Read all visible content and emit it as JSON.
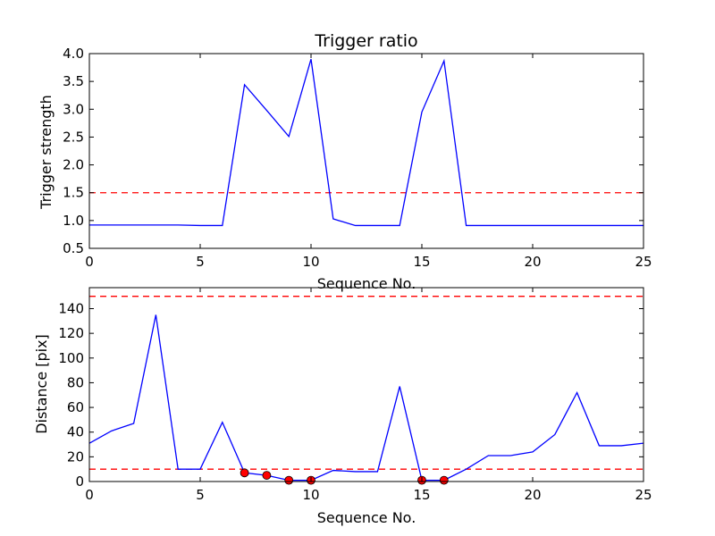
{
  "chart_data": [
    {
      "type": "line",
      "title": "Trigger ratio",
      "xlabel": "Sequence No.",
      "ylabel": "Trigger strength",
      "xlim": [
        0,
        25
      ],
      "ylim": [
        0.5,
        4.0
      ],
      "xticks": [
        0,
        5,
        10,
        15,
        20,
        25
      ],
      "xtick_labels": [
        "0",
        "5",
        "10",
        "15",
        "20",
        "25"
      ],
      "yticks": [
        0.5,
        1.0,
        1.5,
        2.0,
        2.5,
        3.0,
        3.5,
        4.0
      ],
      "ytick_labels": [
        "0.5",
        "1.0",
        "1.5",
        "2.0",
        "2.5",
        "3.0",
        "3.5",
        "4.0"
      ],
      "series": [
        {
          "color": "#0000ff",
          "x": [
            0,
            1,
            2,
            3,
            4,
            5,
            6,
            7,
            8,
            9,
            10,
            11,
            12,
            13,
            14,
            15,
            16,
            17,
            18,
            19,
            20,
            21,
            22,
            23,
            24,
            25
          ],
          "y": [
            0.92,
            0.92,
            0.92,
            0.92,
            0.92,
            0.91,
            0.91,
            3.44,
            2.98,
            2.51,
            3.9,
            1.03,
            0.91,
            0.91,
            0.91,
            2.95,
            3.87,
            0.91,
            0.91,
            0.91,
            0.91,
            0.91,
            0.91,
            0.91,
            0.91,
            0.91
          ]
        }
      ],
      "hlines": [
        {
          "y": 1.5,
          "color": "#ff0000",
          "style": "dashed"
        }
      ],
      "grid": false,
      "legend": "none"
    },
    {
      "type": "line",
      "title": "",
      "xlabel": "Sequence No.",
      "ylabel": "Distance [pix]",
      "xlim": [
        0,
        25
      ],
      "ylim": [
        0,
        157
      ],
      "xticks": [
        0,
        5,
        10,
        15,
        20,
        25
      ],
      "xtick_labels": [
        "0",
        "5",
        "10",
        "15",
        "20",
        "25"
      ],
      "yticks": [
        0,
        20,
        40,
        60,
        80,
        100,
        120,
        140
      ],
      "ytick_labels": [
        "0",
        "20",
        "40",
        "60",
        "80",
        "100",
        "120",
        "140"
      ],
      "series": [
        {
          "color": "#0000ff",
          "x": [
            0,
            1,
            2,
            3,
            4,
            5,
            6,
            7,
            8,
            9,
            10,
            11,
            12,
            13,
            14,
            15,
            16,
            17,
            18,
            19,
            20,
            21,
            22,
            23,
            24,
            25
          ],
          "y": [
            31,
            41,
            47,
            135,
            10,
            10,
            48,
            7,
            5,
            1,
            1,
            9,
            8,
            8,
            77,
            1,
            1,
            10,
            21,
            21,
            24,
            38,
            72,
            29,
            29,
            31
          ]
        }
      ],
      "markers": {
        "color": "#ff0000",
        "x": [
          7,
          8,
          9,
          10,
          15,
          16
        ],
        "y": [
          7,
          5,
          1,
          1,
          1,
          1
        ]
      },
      "hlines": [
        {
          "y": 150,
          "color": "#ff0000",
          "style": "dashed"
        },
        {
          "y": 10,
          "color": "#ff0000",
          "style": "dashed"
        }
      ],
      "grid": false,
      "legend": "none"
    }
  ]
}
